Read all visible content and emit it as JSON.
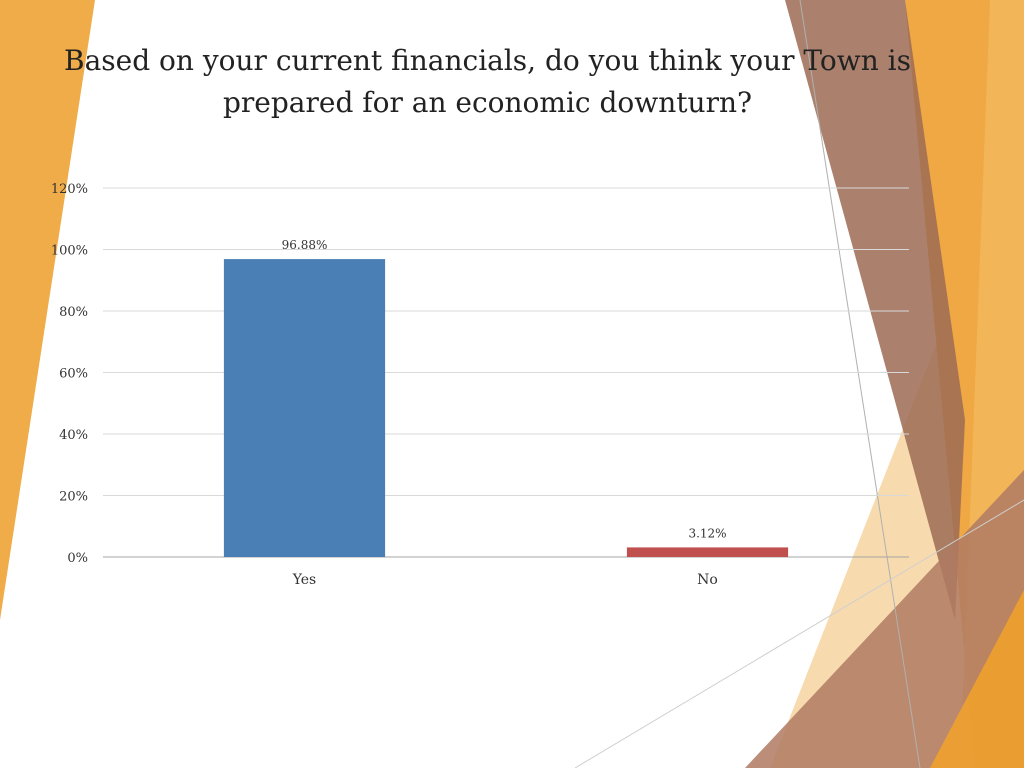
{
  "chart_data": {
    "type": "bar",
    "title": "Based on your current financials, do you think your Town is prepared for an economic downturn?",
    "categories": [
      "Yes",
      "No"
    ],
    "values": [
      96.88,
      3.12
    ],
    "data_labels": [
      "96.88%",
      "3.12%"
    ],
    "ylim": [
      0,
      120
    ],
    "y_ticks": [
      0,
      20,
      40,
      60,
      80,
      100,
      120
    ],
    "y_tick_format": "%",
    "grid": true,
    "legend": "none",
    "xlabel": "",
    "ylabel": ""
  },
  "colors": {
    "bar_yes": "#4a7fb5",
    "bar_no": "#c0504d",
    "gridline": "#d9d9d9",
    "axis": "#a6a6a6",
    "accent_orange": "#f0ac48",
    "accent_brown": "#9c6b55"
  }
}
